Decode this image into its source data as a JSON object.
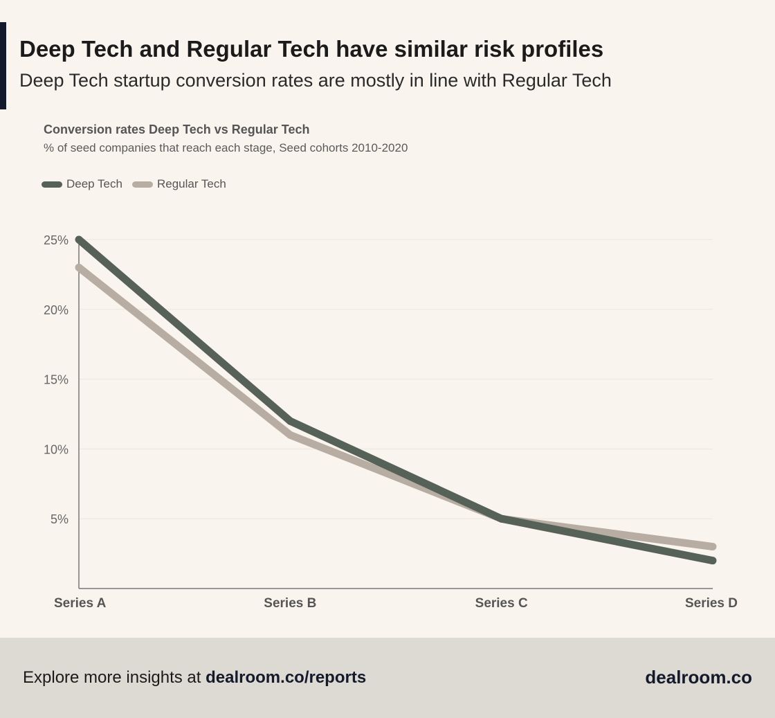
{
  "header": {
    "title": "Deep Tech and Regular Tech have similar risk profiles",
    "subtitle": "Deep Tech startup conversion rates are mostly in line with Regular Tech"
  },
  "colors": {
    "deep_tech": "#566157",
    "regular_tech": "#b8ada2",
    "grid": "#ebe6dd",
    "axis": "#777777",
    "accent": "#141a2b"
  },
  "chart_data": {
    "type": "line",
    "title": "Conversion rates Deep Tech vs Regular Tech",
    "subtitle": "% of seed companies that reach each stage, Seed cohorts 2010-2020",
    "categories": [
      "Series A",
      "Series B",
      "Series C",
      "Series D"
    ],
    "series": [
      {
        "name": "Deep Tech",
        "values": [
          25,
          12,
          5,
          2
        ]
      },
      {
        "name": "Regular Tech",
        "values": [
          23,
          11,
          5,
          3
        ]
      }
    ],
    "yticks": [
      5,
      10,
      15,
      20,
      25
    ],
    "ytick_labels": [
      "5%",
      "10%",
      "15%",
      "20%",
      "25%"
    ],
    "ylim": [
      0,
      25
    ],
    "xlabel": "",
    "ylabel": "",
    "legend_position": "top-left",
    "grid": true
  },
  "footer": {
    "prefix": "Explore more insights at ",
    "link": "dealroom.co/reports",
    "brand": "dealroom.co"
  }
}
